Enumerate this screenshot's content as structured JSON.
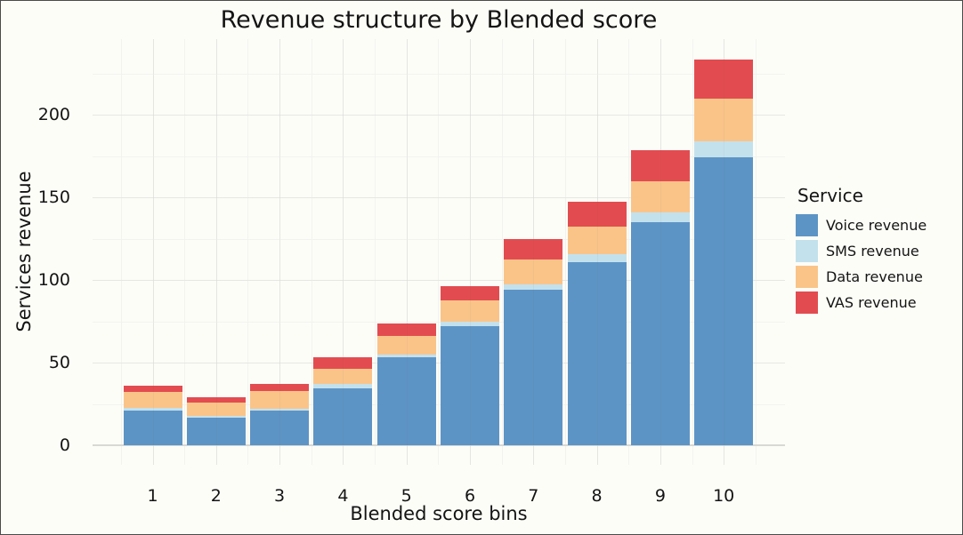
{
  "chart_data": {
    "type": "bar",
    "stacked": true,
    "title": "Revenue structure by Blended score",
    "xlabel": "Blended score bins",
    "ylabel": "Services revenue",
    "legend_title": "Service",
    "legend_position": "right",
    "grid": true,
    "categories": [
      "1",
      "2",
      "3",
      "4",
      "5",
      "6",
      "7",
      "8",
      "9",
      "10"
    ],
    "yticks": [
      0,
      50,
      100,
      150,
      200
    ],
    "ylim": [
      0,
      246
    ],
    "series": [
      {
        "name": "Voice revenue",
        "color": "#5D94C6",
        "values": [
          21,
          16.5,
          21,
          34.5,
          53,
          72,
          94,
          111,
          135,
          174
        ]
      },
      {
        "name": "SMS revenue",
        "color": "#C3E1ED",
        "values": [
          1.5,
          1.5,
          1,
          2.5,
          2,
          3,
          3.5,
          4.5,
          6,
          10
        ]
      },
      {
        "name": "Data revenue",
        "color": "#FAC489",
        "values": [
          10,
          8,
          11,
          9.5,
          11,
          12.5,
          15,
          17,
          18.5,
          25.5
        ]
      },
      {
        "name": "VAS revenue",
        "color": "#E24C50",
        "values": [
          3.5,
          3,
          4,
          7,
          7.5,
          9,
          12,
          15,
          19,
          24
        ]
      }
    ]
  },
  "colors": {
    "background": "#FDFDF8",
    "frame_border": "#4B4B4B",
    "text": "#141414",
    "grid_minor": "#F2F2EF",
    "grid_major_h": "#E6E6E3",
    "grid_major_v": "#EDEDEA",
    "zero_line": "#D8D8D5"
  }
}
